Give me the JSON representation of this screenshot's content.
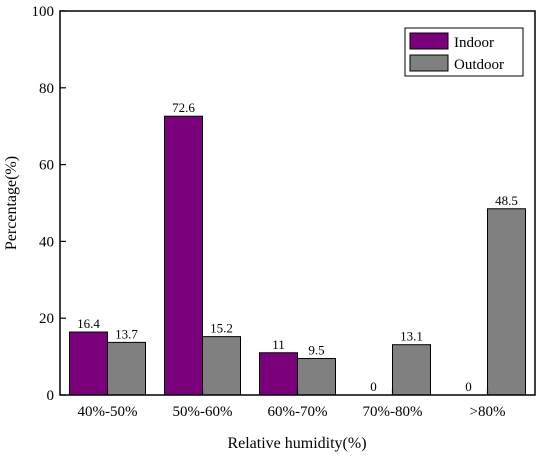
{
  "chart_data": {
    "type": "bar",
    "title": "",
    "xlabel": "Relative humidity(%)",
    "ylabel": "Percentage(%)",
    "categories": [
      "40%-50%",
      "50%-60%",
      "60%-70%",
      "70%-80%",
      ">80%"
    ],
    "series": [
      {
        "name": "Indoor",
        "color": "#7B007B",
        "values": [
          16.4,
          72.6,
          11,
          0,
          0
        ],
        "labels": [
          "16.4",
          "72.6",
          "11",
          "0",
          "0"
        ]
      },
      {
        "name": "Outdoor",
        "color": "#808080",
        "values": [
          13.7,
          15.2,
          9.5,
          13.1,
          48.5
        ],
        "labels": [
          "13.7",
          "15.2",
          "9.5",
          "13.1",
          "48.5"
        ]
      }
    ],
    "ylim": [
      0,
      100
    ],
    "yticks": [
      0,
      20,
      40,
      60,
      80,
      100
    ],
    "grid": false,
    "legend_position": "top-right"
  }
}
